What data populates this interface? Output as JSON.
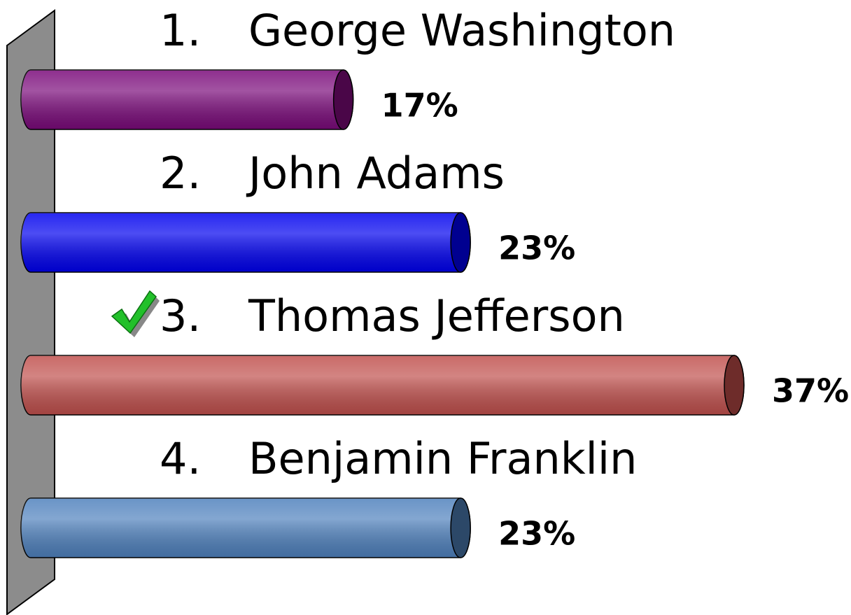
{
  "chart_data": {
    "type": "bar",
    "item_numbers": [
      "1.",
      "2.",
      "3.",
      "4."
    ],
    "categories": [
      "George Washington",
      "John Adams",
      "Thomas Jefferson",
      "Benjamin Franklin"
    ],
    "values": [
      17,
      23,
      37,
      23
    ],
    "value_labels": [
      "17%",
      "23%",
      "37%",
      "23%"
    ],
    "colors": [
      "#7a0a7a",
      "#0000ee",
      "#c0504d",
      "#4f81bd"
    ],
    "cap_colors": [
      "#4a0648",
      "#000090",
      "#6e2c2a",
      "#2c4868"
    ],
    "correct_index": 2
  }
}
